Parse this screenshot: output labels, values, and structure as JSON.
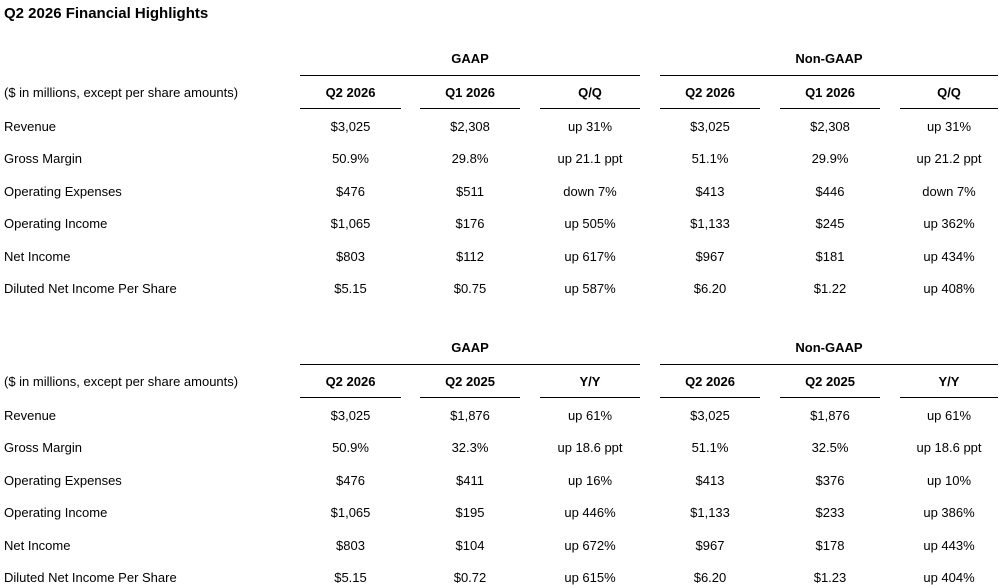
{
  "title": "Q2 2026 Financial Highlights",
  "tables": [
    {
      "groups": [
        "GAAP",
        "Non-GAAP"
      ],
      "header": [
        "($ in millions, except per share amounts)",
        "Q2 2026",
        "Q1 2026",
        "Q/Q",
        "Q2 2026",
        "Q1 2026",
        "Q/Q"
      ],
      "rows": [
        [
          "Revenue",
          "$3,025",
          "$2,308",
          "up 31%",
          "$3,025",
          "$2,308",
          "up 31%"
        ],
        [
          "Gross Margin",
          "50.9%",
          "29.8%",
          "up 21.1 ppt",
          "51.1%",
          "29.9%",
          "up 21.2 ppt"
        ],
        [
          "Operating Expenses",
          "$476",
          "$511",
          "down 7%",
          "$413",
          "$446",
          "down 7%"
        ],
        [
          "Operating Income",
          "$1,065",
          "$176",
          "up 505%",
          "$1,133",
          "$245",
          "up 362%"
        ],
        [
          "Net Income",
          "$803",
          "$112",
          "up 617%",
          "$967",
          "$181",
          "up 434%"
        ],
        [
          "Diluted Net Income Per Share",
          "$5.15",
          "$0.75",
          "up 587%",
          "$6.20",
          "$1.22",
          "up 408%"
        ]
      ]
    },
    {
      "groups": [
        "GAAP",
        "Non-GAAP"
      ],
      "header": [
        "($ in millions, except per share amounts)",
        "Q2 2026",
        "Q2 2025",
        "Y/Y",
        "Q2 2026",
        "Q2 2025",
        "Y/Y"
      ],
      "rows": [
        [
          "Revenue",
          "$3,025",
          "$1,876",
          "up 61%",
          "$3,025",
          "$1,876",
          "up 61%"
        ],
        [
          "Gross Margin",
          "50.9%",
          "32.3%",
          "up 18.6 ppt",
          "51.1%",
          "32.5%",
          "up 18.6 ppt"
        ],
        [
          "Operating Expenses",
          "$476",
          "$411",
          "up 16%",
          "$413",
          "$376",
          "up 10%"
        ],
        [
          "Operating Income",
          "$1,065",
          "$195",
          "up 446%",
          "$1,133",
          "$233",
          "up 386%"
        ],
        [
          "Net Income",
          "$803",
          "$104",
          "up 672%",
          "$967",
          "$178",
          "up 443%"
        ],
        [
          "Diluted Net Income Per Share",
          "$5.15",
          "$0.72",
          "up 615%",
          "$6.20",
          "$1.23",
          "up 404%"
        ]
      ]
    }
  ]
}
